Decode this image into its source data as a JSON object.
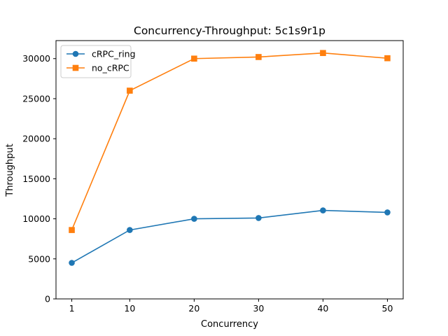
{
  "chart_data": {
    "type": "line",
    "title": "Concurrency-Throughput: 5c1s9r1p",
    "xlabel": "Concurrency",
    "ylabel": "Throughput",
    "x": [
      1,
      10,
      20,
      30,
      40,
      50
    ],
    "xticks": [
      1,
      10,
      20,
      30,
      40,
      50
    ],
    "yticks": [
      0,
      5000,
      10000,
      15000,
      20000,
      25000,
      30000
    ],
    "ylim": [
      0,
      32250
    ],
    "xlim": [
      -1.45,
      52.45
    ],
    "grid": false,
    "legend_position": "top-left",
    "series": [
      {
        "name": "cRPC_ring",
        "marker": "circle",
        "color": "#1f77b4",
        "values": [
          4500,
          8600,
          10000,
          10100,
          11050,
          10800
        ]
      },
      {
        "name": "no_cRPC",
        "marker": "square",
        "color": "#ff7f0e",
        "values": [
          8600,
          26000,
          30000,
          30200,
          30700,
          30050
        ]
      }
    ]
  }
}
